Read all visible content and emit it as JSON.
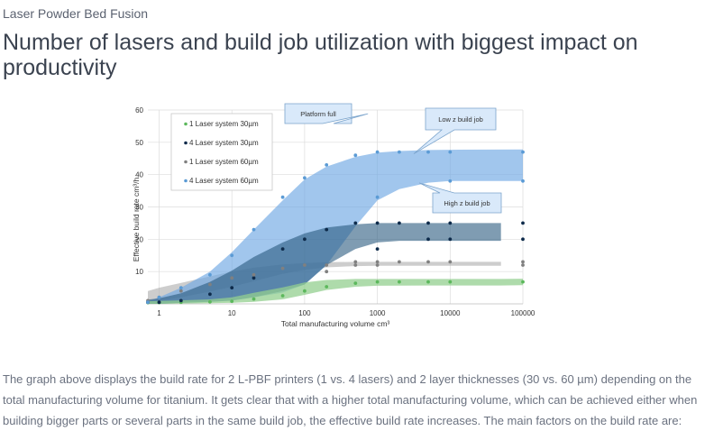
{
  "page": {
    "eyebrow": "Laser Powder Bed Fusion",
    "headline": "Number of lasers and build job utilization with biggest impact on productivity",
    "body": "The graph above displays the build rate for 2 L-PBF printers (1 vs. 4 lasers) and 2 layer thicknesses (30 vs. 60 µm) depending on the total manufacturing volume for titanium. It gets clear that with a higher total manufacturing volume, which can be achieved either when building bigger parts or several parts in the same build job, the effective build rate increases. The main factors on the build rate are:"
  },
  "chart_data": {
    "type": "scatter",
    "xscale": "log",
    "xlabel": "Total manufacturing volume cm³",
    "ylabel": "Effective build rate cm³/h",
    "xlim": [
      0.7,
      100000
    ],
    "ylim": [
      0,
      60
    ],
    "xticks": [
      1,
      10,
      100,
      1000,
      10000,
      100000
    ],
    "xticklabels": [
      "1",
      "10",
      "100",
      "1000",
      "10000",
      "100000"
    ],
    "yticks": [
      10,
      20,
      30,
      40,
      50,
      60
    ],
    "grid": true,
    "legend_position": "top-left",
    "series": [
      {
        "name": "1 Laser system 30µm",
        "color": "#5cb85c",
        "band_color": "#93cf8f",
        "points": [
          [
            0.7,
            0.4
          ],
          [
            1,
            0.4
          ],
          [
            2,
            0.5
          ],
          [
            5,
            0.6
          ],
          [
            10,
            0.8
          ],
          [
            20,
            1.5
          ],
          [
            50,
            2.5
          ],
          [
            100,
            4
          ],
          [
            200,
            5.3
          ],
          [
            500,
            6.4
          ],
          [
            1000,
            6.8
          ],
          [
            2000,
            6.8
          ],
          [
            5000,
            6.8
          ],
          [
            10000,
            6.8
          ],
          [
            100000,
            6.8
          ]
        ],
        "band": {
          "x": [
            0.7,
            1,
            2,
            5,
            10,
            20,
            50,
            100,
            200,
            500,
            1000,
            5000,
            10000,
            50000,
            100000
          ],
          "low": [
            0,
            0,
            0.1,
            0.2,
            0.3,
            0.6,
            1.4,
            2.8,
            4.3,
            5.3,
            5.6,
            5.7,
            5.7,
            5.7,
            5.8
          ],
          "high": [
            0.8,
            0.9,
            1.1,
            1.4,
            2.0,
            3.4,
            5.1,
            6.6,
            7.4,
            7.7,
            7.7,
            7.7,
            7.7,
            7.7,
            7.8
          ]
        }
      },
      {
        "name": "4 Laser system 30µm",
        "color": "#0d2a4a",
        "band_color": "#2a5a7f",
        "points": [
          [
            0.7,
            0.5
          ],
          [
            1,
            0.5
          ],
          [
            2,
            1
          ],
          [
            5,
            3
          ],
          [
            10,
            5
          ],
          [
            20,
            8
          ],
          [
            50,
            17
          ],
          [
            100,
            20
          ],
          [
            200,
            23
          ],
          [
            500,
            25
          ],
          [
            1000,
            25
          ],
          [
            2000,
            25
          ],
          [
            5000,
            25
          ],
          [
            10000,
            25
          ],
          [
            100000,
            25
          ],
          [
            1000,
            17
          ],
          [
            5000,
            20
          ],
          [
            10000,
            20
          ],
          [
            100000,
            20
          ]
        ],
        "band": {
          "x": [
            0.7,
            1,
            2,
            5,
            10,
            20,
            50,
            100,
            200,
            500,
            1000,
            2000,
            5000,
            10000,
            50000
          ],
          "low": [
            0,
            0,
            0.3,
            0.6,
            1,
            2,
            4,
            6,
            12,
            17,
            19,
            19.5,
            19.5,
            19.5,
            19.5
          ],
          "high": [
            1.3,
            1.7,
            3.3,
            6.8,
            10.3,
            14.5,
            19,
            21.8,
            23.6,
            24.6,
            25,
            25,
            25,
            25,
            25
          ]
        }
      },
      {
        "name": "1 Laser system 60µm",
        "color": "#808080",
        "band_color": "#aeaeae",
        "points": [
          [
            0.7,
            1
          ],
          [
            1,
            2
          ],
          [
            2,
            4
          ],
          [
            5,
            6
          ],
          [
            10,
            8
          ],
          [
            20,
            9
          ],
          [
            50,
            11
          ],
          [
            100,
            12
          ],
          [
            200,
            12
          ],
          [
            500,
            13
          ],
          [
            1000,
            13
          ],
          [
            2000,
            13
          ],
          [
            5000,
            13
          ],
          [
            10000,
            13
          ],
          [
            100000,
            13
          ],
          [
            200,
            10
          ],
          [
            500,
            12
          ],
          [
            1000,
            12
          ],
          [
            100000,
            12
          ]
        ],
        "band": {
          "x": [
            0.7,
            1,
            2,
            5,
            10,
            20,
            50,
            100,
            200,
            500,
            1000,
            5000,
            10000,
            50000
          ],
          "low": [
            0.5,
            1,
            2,
            3.8,
            5.3,
            7,
            9.3,
            10.5,
            11.3,
            11.7,
            11.8,
            11.8,
            11.8,
            11.8
          ],
          "high": [
            4,
            5,
            6.5,
            8.5,
            10,
            11.2,
            12.2,
            12.6,
            12.9,
            13,
            13,
            13,
            13,
            13
          ]
        }
      },
      {
        "name": "4 Laser system 60µm",
        "color": "#5b9bd5",
        "band_color": "#6fa8e4",
        "points": [
          [
            0.7,
            0.5
          ],
          [
            1,
            2
          ],
          [
            2,
            5
          ],
          [
            5,
            9
          ],
          [
            10,
            15
          ],
          [
            20,
            23
          ],
          [
            50,
            33
          ],
          [
            100,
            39
          ],
          [
            200,
            43
          ],
          [
            500,
            46
          ],
          [
            1000,
            47
          ],
          [
            2000,
            47
          ],
          [
            5000,
            47
          ],
          [
            10000,
            47
          ],
          [
            100000,
            47
          ],
          [
            1000,
            33
          ],
          [
            10000,
            38
          ],
          [
            100000,
            38
          ]
        ],
        "band": {
          "x": [
            0.7,
            1,
            2,
            5,
            10,
            20,
            50,
            100,
            200,
            500,
            1000,
            2000,
            5000,
            10000,
            100000
          ],
          "low": [
            0,
            0,
            0.3,
            0.6,
            1,
            2,
            3.5,
            6,
            12,
            24,
            32,
            35.5,
            37.5,
            38,
            38
          ],
          "high": [
            0.7,
            2,
            5,
            10,
            16,
            23,
            32,
            38.5,
            42.5,
            45.5,
            46.8,
            47.3,
            47.6,
            47.7,
            47.8
          ]
        }
      }
    ],
    "annotations": [
      {
        "text": "Platform full",
        "x": 200,
        "y": 46
      },
      {
        "text": "Low z build job",
        "x": 5000,
        "y": 47
      },
      {
        "text": "High z build job",
        "x": 5000,
        "y": 38
      }
    ]
  }
}
